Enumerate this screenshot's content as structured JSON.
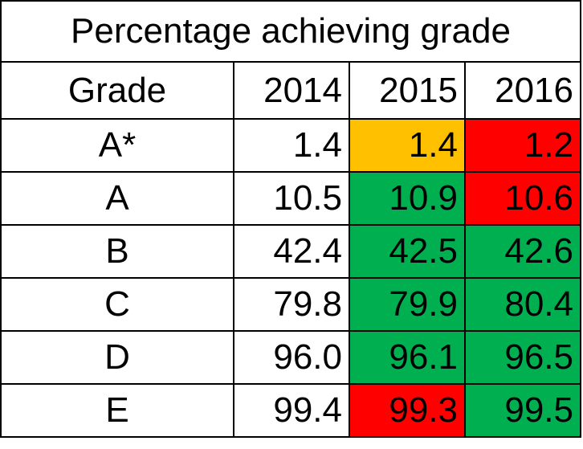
{
  "title": "Percentage achieving grade",
  "headers": {
    "grade": "Grade",
    "years": [
      "2014",
      "2015",
      "2016"
    ]
  },
  "colors": {
    "amber": "#FFC000",
    "green": "#00B050",
    "red": "#FF0000",
    "none": "#FFFFFF"
  },
  "rows": [
    {
      "grade": "A*",
      "values": [
        "1.4",
        "1.4",
        "1.2"
      ],
      "status": [
        "none",
        "amber",
        "red"
      ]
    },
    {
      "grade": "A",
      "values": [
        "10.5",
        "10.9",
        "10.6"
      ],
      "status": [
        "none",
        "green",
        "red"
      ]
    },
    {
      "grade": "B",
      "values": [
        "42.4",
        "42.5",
        "42.6"
      ],
      "status": [
        "none",
        "green",
        "green"
      ]
    },
    {
      "grade": "C",
      "values": [
        "79.8",
        "79.9",
        "80.4"
      ],
      "status": [
        "none",
        "green",
        "green"
      ]
    },
    {
      "grade": "D",
      "values": [
        "96.0",
        "96.1",
        "96.5"
      ],
      "status": [
        "none",
        "green",
        "green"
      ]
    },
    {
      "grade": "E",
      "values": [
        "99.4",
        "99.3",
        "99.5"
      ],
      "status": [
        "none",
        "red",
        "green"
      ]
    }
  ]
}
